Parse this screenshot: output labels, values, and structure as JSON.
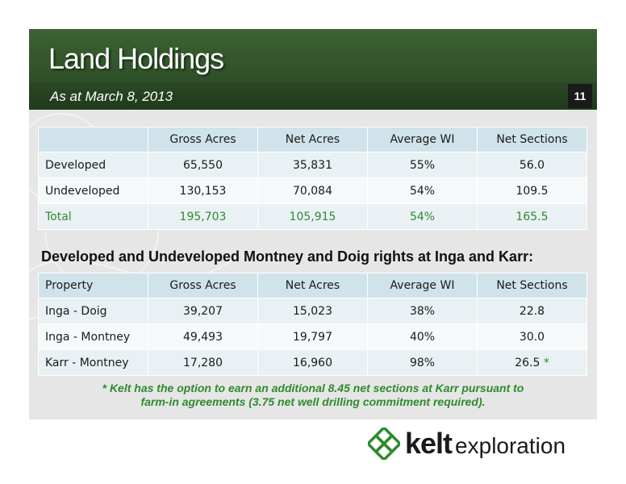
{
  "slide": {
    "title": "Land Holdings",
    "subtitle": "As at March 8, 2013",
    "page_number": "11"
  },
  "table1": {
    "headers": [
      "",
      "Gross Acres",
      "Net Acres",
      "Average WI",
      "Net Sections"
    ],
    "rows": [
      [
        "Developed",
        "65,550",
        "35,831",
        "55%",
        "56.0"
      ],
      [
        "Undeveloped",
        "130,153",
        "70,084",
        "54%",
        "109.5"
      ]
    ],
    "total": [
      "Total",
      "195,703",
      "105,915",
      "54%",
      "165.5"
    ]
  },
  "section_heading": "Developed and Undeveloped Montney and Doig rights at Inga and Karr:",
  "table2": {
    "headers": [
      "Property",
      "Gross Acres",
      "Net Acres",
      "Average WI",
      "Net Sections"
    ],
    "rows": [
      [
        "Inga - Doig",
        "39,207",
        "15,023",
        "38%",
        "22.8"
      ],
      [
        "Inga - Montney",
        "49,493",
        "19,797",
        "40%",
        "30.0"
      ],
      [
        "Karr - Montney",
        "17,280",
        "16,960",
        "98%",
        "26.5"
      ]
    ],
    "footnote_marker": "*"
  },
  "footnote": {
    "line1": "* Kelt has the option to earn an additional 8.45 net sections at Karr pursuant to",
    "line2": "farm-in agreements (3.75 net well drilling commitment required)."
  },
  "logo": {
    "word_bold": "kelt",
    "word_light": "exploration",
    "icon": "celtic-knot-icon",
    "icon_color": "#2f8a2f"
  },
  "colors": {
    "header_green": "#2d4f27",
    "accent_green": "#2f8a2f",
    "table_header": "#d0e3ea",
    "table_row": "#e9f1f4"
  }
}
